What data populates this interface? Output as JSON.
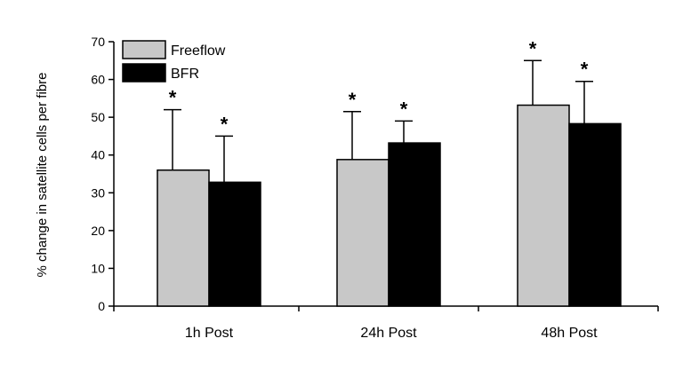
{
  "chart_data": {
    "type": "bar",
    "categories": [
      "1h Post",
      "24h Post",
      "48h Post"
    ],
    "series": [
      {
        "name": "Freeflow",
        "color": "#c8c8c8",
        "values": [
          36,
          38.8,
          53.2
        ],
        "error_upper": [
          52,
          51.5,
          65
        ],
        "significance": [
          "*",
          "*",
          "*"
        ]
      },
      {
        "name": "BFR",
        "color": "#000000",
        "values": [
          32.8,
          43.2,
          48.3
        ],
        "error_upper": [
          45,
          49,
          59.5
        ],
        "significance": [
          "*",
          "*",
          "*"
        ]
      }
    ],
    "ylabel": "% change in satellite cells per fibre",
    "xlabel": "",
    "ylim": [
      0,
      70
    ],
    "yticks": [
      "0",
      "10",
      "20",
      "30",
      "40",
      "50",
      "60",
      "70"
    ],
    "grid": false,
    "legend": "top-left"
  }
}
